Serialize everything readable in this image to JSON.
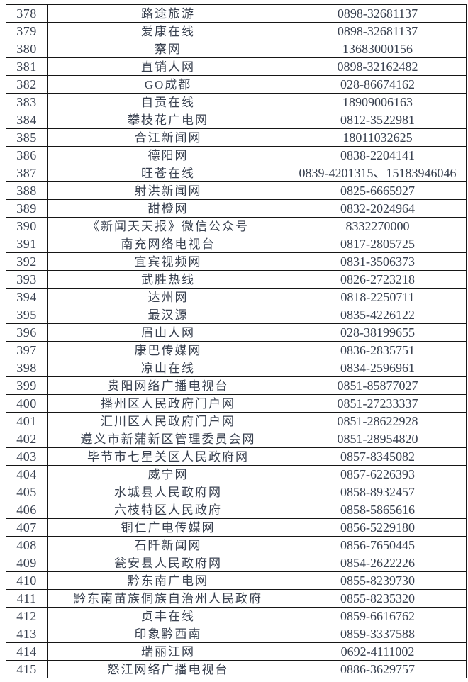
{
  "colors": {
    "text": "#38404f",
    "border": "#161616",
    "background": "#ffffff"
  },
  "table": {
    "columns": [
      "index",
      "name",
      "phone"
    ],
    "rows": [
      {
        "index": "378",
        "name": "路途旅游",
        "phone": "0898-32681137"
      },
      {
        "index": "379",
        "name": "爱康在线",
        "phone": "0898-32681137"
      },
      {
        "index": "380",
        "name": "察网",
        "phone": "13683000156"
      },
      {
        "index": "381",
        "name": "直销人网",
        "phone": "0898-32162482"
      },
      {
        "index": "382",
        "name": "GO成都",
        "phone": "028-86674162"
      },
      {
        "index": "383",
        "name": "自贡在线",
        "phone": "18909006163"
      },
      {
        "index": "384",
        "name": "攀枝花广电网",
        "phone": "0812-3522981"
      },
      {
        "index": "385",
        "name": "合江新闻网",
        "phone": "18011032625"
      },
      {
        "index": "386",
        "name": "德阳网",
        "phone": "0838-2204141"
      },
      {
        "index": "387",
        "name": "旺苍在线",
        "phone": "0839-4201315、15183946046"
      },
      {
        "index": "388",
        "name": "射洪新闻网",
        "phone": "0825-6665927"
      },
      {
        "index": "389",
        "name": "甜橙网",
        "phone": "0832-2024964"
      },
      {
        "index": "390",
        "name": "《新闻天天报》微信公众号",
        "phone": "8332270000"
      },
      {
        "index": "391",
        "name": "南充网络电视台",
        "phone": "0817-2805725"
      },
      {
        "index": "392",
        "name": "宜宾视频网",
        "phone": "0831-3506373"
      },
      {
        "index": "393",
        "name": "武胜热线",
        "phone": "0826-2723218"
      },
      {
        "index": "394",
        "name": "达州网",
        "phone": "0818-2250711"
      },
      {
        "index": "395",
        "name": "最汉源",
        "phone": "0835-4226122"
      },
      {
        "index": "396",
        "name": "眉山人网",
        "phone": "028-38199655"
      },
      {
        "index": "397",
        "name": "康巴传媒网",
        "phone": "0836-2835751"
      },
      {
        "index": "398",
        "name": "凉山在线",
        "phone": "0834-2596961"
      },
      {
        "index": "399",
        "name": "贵阳网络广播电视台",
        "phone": "0851-85877027"
      },
      {
        "index": "400",
        "name": "播州区人民政府门户网",
        "phone": "0851-27233337"
      },
      {
        "index": "401",
        "name": "汇川区人民政府门户网",
        "phone": "0851-28622928"
      },
      {
        "index": "402",
        "name": "遵义市新蒲新区管理委员会网",
        "phone": "0851-28954820"
      },
      {
        "index": "403",
        "name": "毕节市七星关区人民政府网",
        "phone": "0857-8345082"
      },
      {
        "index": "404",
        "name": "威宁网",
        "phone": "0857-6226393"
      },
      {
        "index": "405",
        "name": "水城县人民政府网",
        "phone": "0858-8932457"
      },
      {
        "index": "406",
        "name": "六枝特区人民政府",
        "phone": "0858-5865616"
      },
      {
        "index": "407",
        "name": "铜仁广电传媒网",
        "phone": "0856-5229180"
      },
      {
        "index": "408",
        "name": "石阡新闻网",
        "phone": "0856-7650445"
      },
      {
        "index": "409",
        "name": "瓮安县人民政府网",
        "phone": "0854-2622226"
      },
      {
        "index": "410",
        "name": "黔东南广电网",
        "phone": "0855-8239730"
      },
      {
        "index": "411",
        "name": "黔东南苗族侗族自治州人民政府",
        "phone": "0855-8235320"
      },
      {
        "index": "412",
        "name": "贞丰在线",
        "phone": "0859-6616762"
      },
      {
        "index": "413",
        "name": "印象黔西南",
        "phone": "0859-3337588"
      },
      {
        "index": "414",
        "name": "瑞丽江网",
        "phone": "0692-4111002"
      },
      {
        "index": "415",
        "name": "怒江网络广播电视台",
        "phone": "0886-3629757"
      }
    ]
  }
}
